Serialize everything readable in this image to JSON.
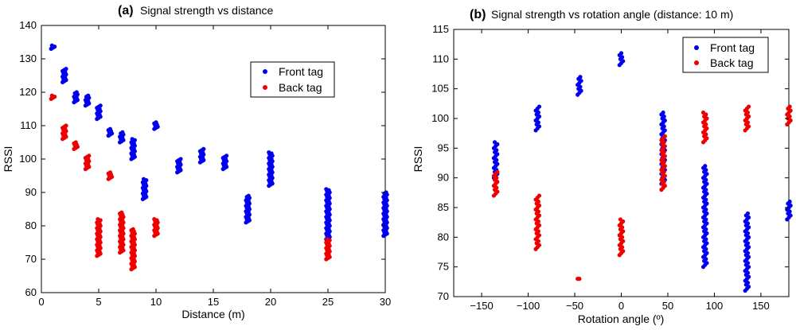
{
  "chart_data": [
    {
      "type": "scatter",
      "letter": "(a)",
      "title": "Signal strength vs distance",
      "xlabel": "Distance (m)",
      "ylabel": "RSSI",
      "xlim": [
        0,
        30
      ],
      "ylim": [
        60,
        140
      ],
      "xticks": [
        "0",
        "5",
        "10",
        "15",
        "20",
        "25",
        "30"
      ],
      "yticks": [
        "60",
        "70",
        "80",
        "90",
        "100",
        "110",
        "120",
        "130",
        "140"
      ],
      "legend_position": "top-right",
      "grid": false,
      "series": [
        {
          "name": "Front tag",
          "color": "#0000ee",
          "clusters": [
            {
              "x": 1,
              "ymin": 133,
              "ymax": 134
            },
            {
              "x": 2,
              "ymin": 123,
              "ymax": 127
            },
            {
              "x": 3,
              "ymin": 117,
              "ymax": 120
            },
            {
              "x": 4,
              "ymin": 116,
              "ymax": 119
            },
            {
              "x": 5,
              "ymin": 112,
              "ymax": 116
            },
            {
              "x": 6,
              "ymin": 107,
              "ymax": 109
            },
            {
              "x": 7,
              "ymin": 105,
              "ymax": 108
            },
            {
              "x": 8,
              "ymin": 100,
              "ymax": 106
            },
            {
              "x": 9,
              "ymin": 88,
              "ymax": 94
            },
            {
              "x": 10,
              "ymin": 109,
              "ymax": 111
            },
            {
              "x": 12,
              "ymin": 96,
              "ymax": 100
            },
            {
              "x": 14,
              "ymin": 99,
              "ymax": 103
            },
            {
              "x": 16,
              "ymin": 97,
              "ymax": 101
            },
            {
              "x": 18,
              "ymin": 81,
              "ymax": 89
            },
            {
              "x": 20,
              "ymin": 92,
              "ymax": 102
            },
            {
              "x": 25,
              "ymin": 76,
              "ymax": 91
            },
            {
              "x": 30,
              "ymin": 77,
              "ymax": 90
            }
          ]
        },
        {
          "name": "Back tag",
          "color": "#ee0000",
          "clusters": [
            {
              "x": 1,
              "ymin": 118,
              "ymax": 119
            },
            {
              "x": 2,
              "ymin": 106,
              "ymax": 110
            },
            {
              "x": 3,
              "ymin": 103,
              "ymax": 105
            },
            {
              "x": 4,
              "ymin": 97,
              "ymax": 101
            },
            {
              "x": 6,
              "ymin": 94,
              "ymax": 96
            },
            {
              "x": 5,
              "ymin": 71,
              "ymax": 82
            },
            {
              "x": 7,
              "ymin": 72,
              "ymax": 84
            },
            {
              "x": 8,
              "ymin": 67,
              "ymax": 79
            },
            {
              "x": 10,
              "ymin": 77,
              "ymax": 82
            },
            {
              "x": 25,
              "ymin": 70,
              "ymax": 76
            }
          ]
        }
      ]
    },
    {
      "type": "scatter",
      "letter": "(b)",
      "title": "Signal strength vs rotation angle (distance: 10 m)",
      "xlabel": "Rotation angle (º)",
      "ylabel": "RSSI",
      "xlim": [
        -180,
        180
      ],
      "ylim": [
        70,
        115
      ],
      "xticks": [
        "−150",
        "−100",
        "−50",
        "0",
        "50",
        "100",
        "150"
      ],
      "yticks": [
        "70",
        "75",
        "80",
        "85",
        "90",
        "95",
        "100",
        "105",
        "110",
        "115"
      ],
      "legend_position": "top-right",
      "grid": false,
      "series": [
        {
          "name": "Front tag",
          "color": "#0000ee",
          "clusters": [
            {
              "x": -135,
              "ymin": 90,
              "ymax": 96
            },
            {
              "x": -90,
              "ymin": 98,
              "ymax": 102
            },
            {
              "x": -45,
              "ymin": 104,
              "ymax": 107
            },
            {
              "x": 0,
              "ymin": 109,
              "ymax": 111
            },
            {
              "x": 45,
              "ymin": 89,
              "ymax": 101
            },
            {
              "x": 90,
              "ymin": 75,
              "ymax": 92
            },
            {
              "x": 135,
              "ymin": 71,
              "ymax": 84
            },
            {
              "x": 180,
              "ymin": 83,
              "ymax": 86
            }
          ]
        },
        {
          "name": "Back tag",
          "color": "#ee0000",
          "clusters": [
            {
              "x": -135,
              "ymin": 87,
              "ymax": 91
            },
            {
              "x": -90,
              "ymin": 78,
              "ymax": 87
            },
            {
              "x": -45,
              "ymin": 73,
              "ymax": 73
            },
            {
              "x": 0,
              "ymin": 77,
              "ymax": 83
            },
            {
              "x": 45,
              "ymin": 88,
              "ymax": 97
            },
            {
              "x": 90,
              "ymin": 96,
              "ymax": 101
            },
            {
              "x": 135,
              "ymin": 98,
              "ymax": 102
            },
            {
              "x": 180,
              "ymin": 99,
              "ymax": 102
            }
          ]
        }
      ]
    }
  ]
}
